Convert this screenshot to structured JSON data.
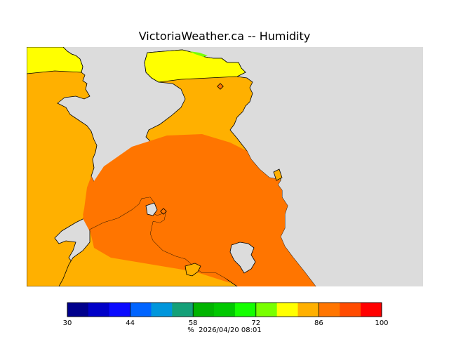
{
  "title": "VictoriaWeather.ca -- Humidity",
  "map": {
    "background_color": "#dcdcdc",
    "land_fill_colors": [
      "#ffff00",
      "#ffb000",
      "#ff7500"
    ],
    "stations": [
      "station-marker",
      "station-marker"
    ]
  },
  "legend": {
    "colors": [
      "#00008c",
      "#0000c8",
      "#0a0aff",
      "#0064ff",
      "#0096dc",
      "#14a078",
      "#00b400",
      "#00c800",
      "#14ff00",
      "#78ff00",
      "#ffff00",
      "#ffb000",
      "#ff7500",
      "#ff4b00",
      "#ff0000"
    ],
    "tick_labels": [
      "30",
      "44",
      "58",
      "72",
      "86",
      "100"
    ],
    "unit": "%",
    "timestamp": "2026/04/20 08:01"
  }
}
